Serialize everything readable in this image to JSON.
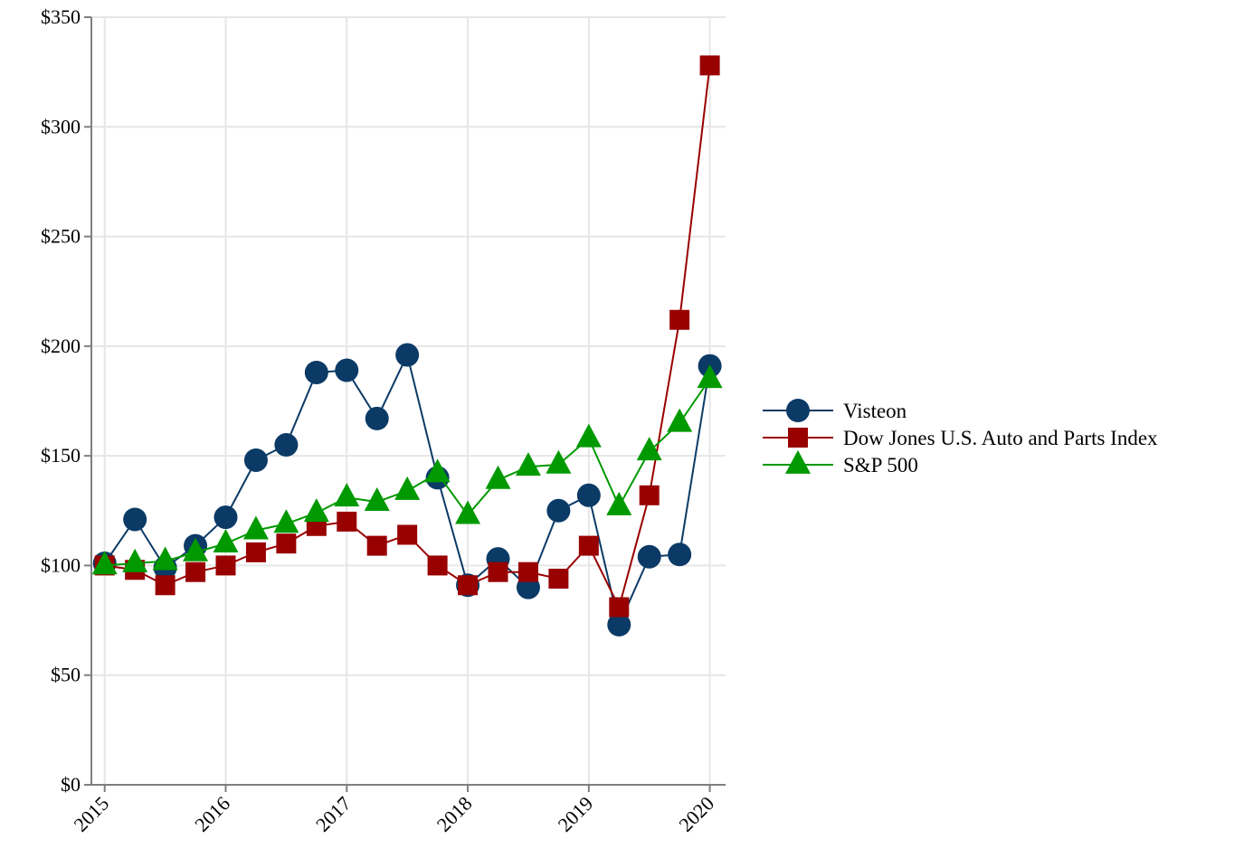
{
  "chart_data": {
    "type": "line",
    "title": "",
    "xlabel": "",
    "ylabel": "",
    "x": [
      2015,
      2015.25,
      2015.5,
      2015.75,
      2016,
      2016.25,
      2016.5,
      2016.75,
      2017,
      2017.25,
      2017.5,
      2017.75,
      2018,
      2018.25,
      2018.5,
      2018.75,
      2019,
      2019.25,
      2019.5,
      2019.75,
      2020
    ],
    "x_ticks": [
      2015,
      2016,
      2017,
      2018,
      2019,
      2020
    ],
    "x_tick_labels": [
      "2015",
      "2016",
      "2017",
      "2018",
      "2019",
      "2020"
    ],
    "xlim": [
      2014.89,
      2020.13
    ],
    "ylim": [
      0,
      350
    ],
    "y_ticks": [
      0,
      50,
      100,
      150,
      200,
      250,
      300,
      350
    ],
    "y_tick_labels": [
      "$0",
      "$50",
      "$100",
      "$150",
      "$200",
      "$250",
      "$300",
      "$350"
    ],
    "grid": true,
    "legend_position": "right",
    "series": [
      {
        "name": "Visteon",
        "color": "#0b3a66",
        "marker": "circle",
        "values": [
          101,
          121,
          99,
          109,
          122,
          148,
          155,
          188,
          189,
          167,
          196,
          140,
          91,
          103,
          90,
          125,
          132,
          73,
          104,
          105,
          191
        ]
      },
      {
        "name": "Dow Jones U.S. Auto and Parts Index",
        "color": "#990000",
        "marker": "square",
        "values": [
          100,
          98,
          91,
          97,
          100,
          106,
          110,
          118,
          120,
          109,
          114,
          100,
          91,
          97,
          97,
          94,
          109,
          81,
          132,
          212,
          328
        ]
      },
      {
        "name": "S&P 500",
        "color": "#009900",
        "marker": "triangle",
        "values": [
          100,
          101,
          102,
          106,
          110,
          116,
          119,
          124,
          131,
          129,
          134,
          142,
          123,
          139,
          145,
          146,
          158,
          127,
          152,
          165,
          185
        ]
      }
    ]
  }
}
